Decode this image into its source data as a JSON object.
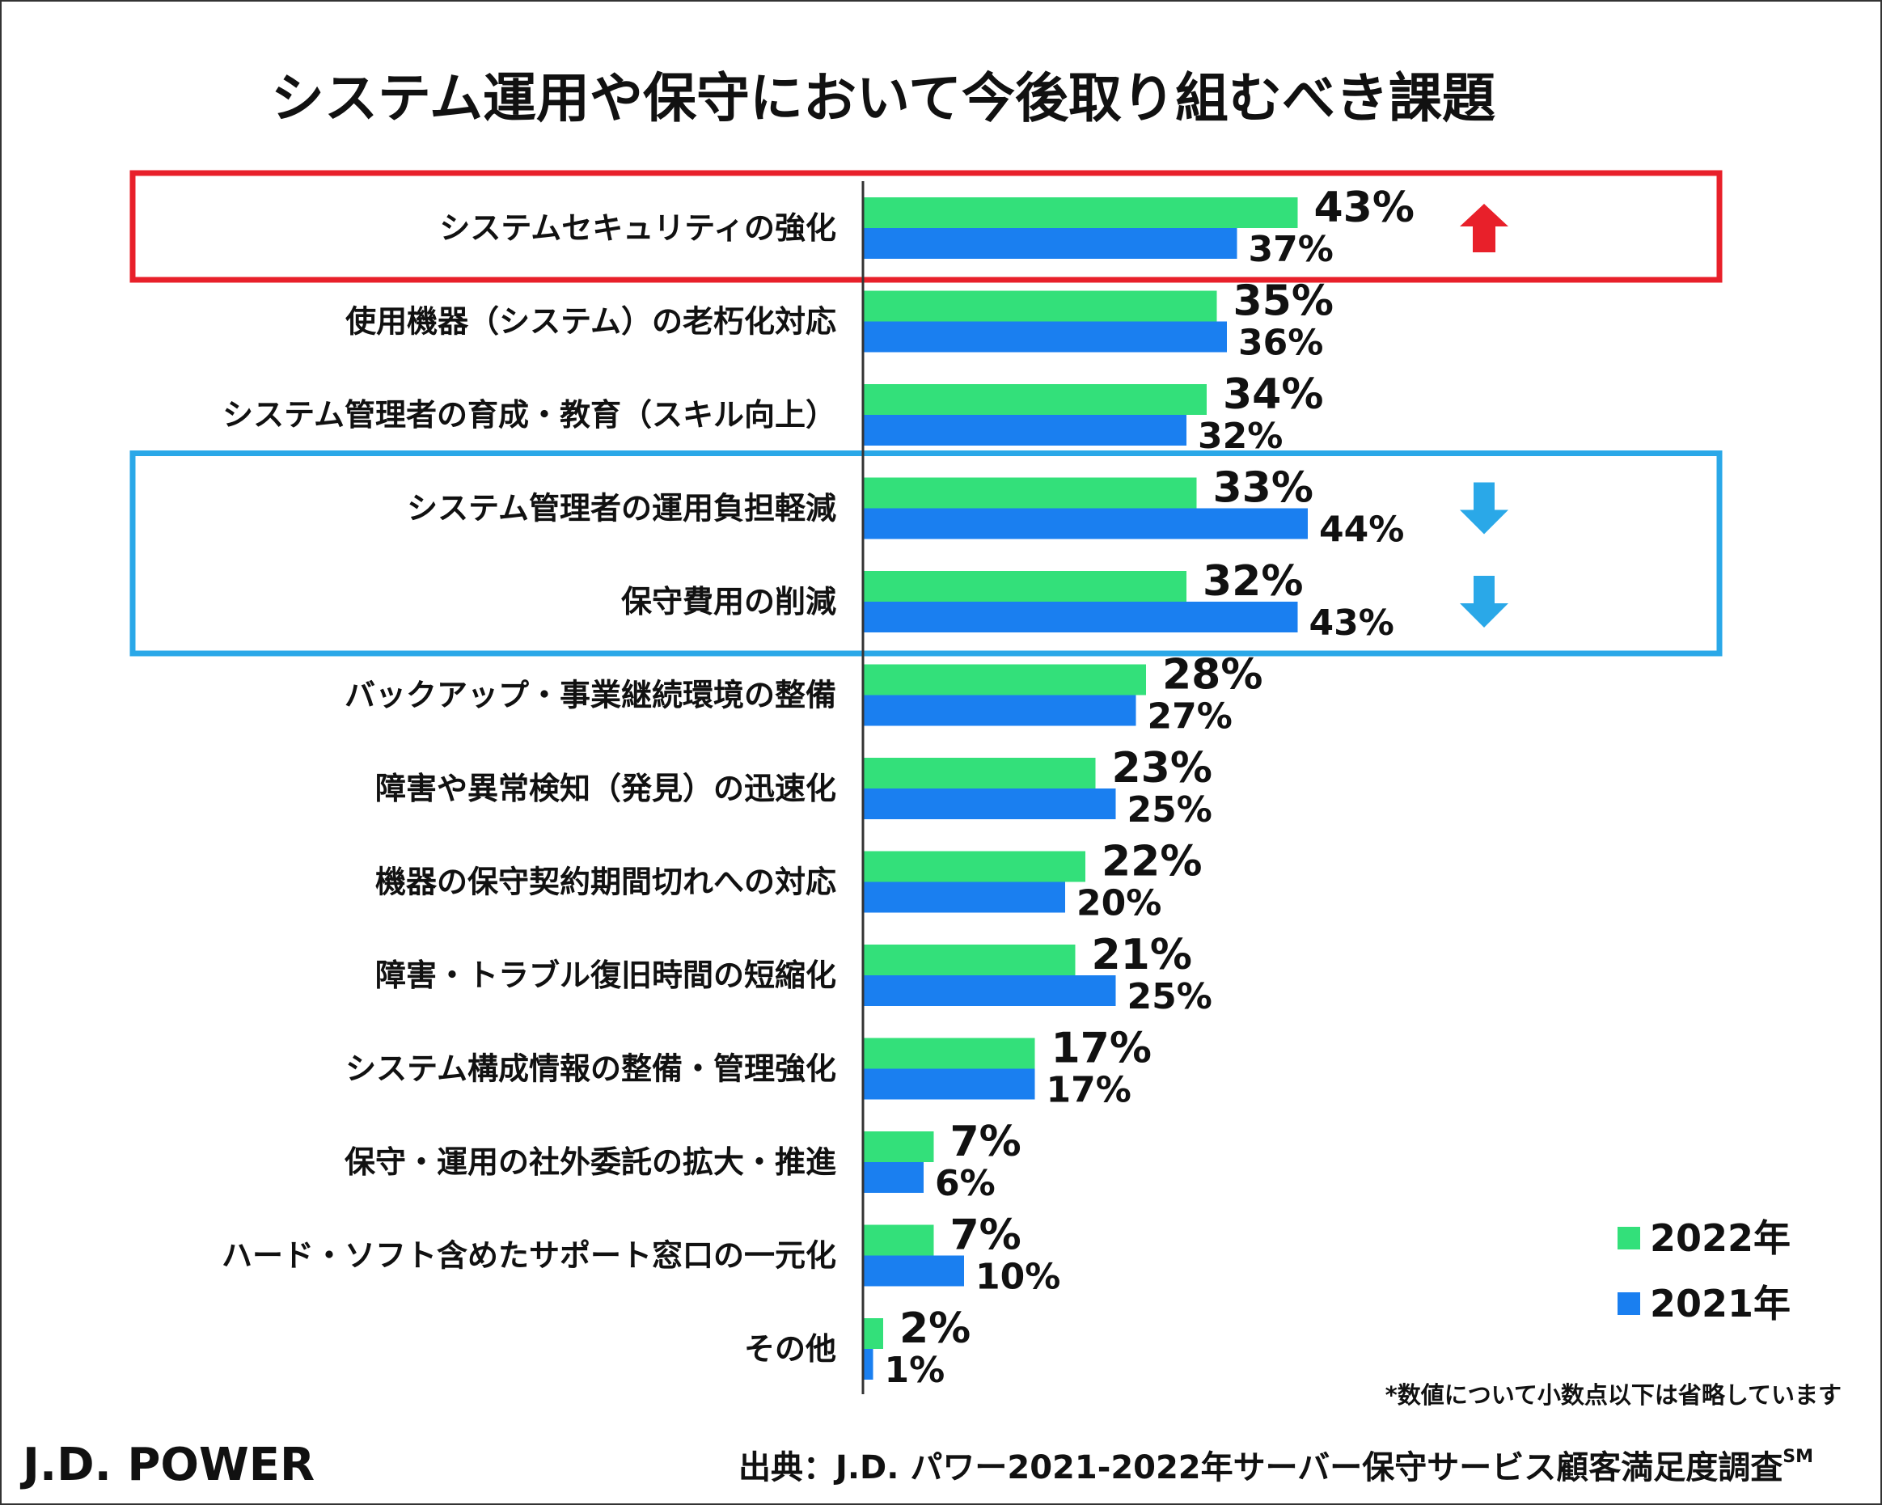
{
  "chart_data": {
    "type": "bar",
    "orientation": "horizontal",
    "title": "システム運用や保守において今後取り組むべき課題",
    "categories": [
      "システムセキュリティの強化",
      "使用機器（システム）の老朽化対応",
      "システム管理者の育成・教育（スキル向上）",
      "システム管理者の運用負担軽減",
      "保守費用の削減",
      "バックアップ・事業継続環境の整備",
      "障害や異常検知（発見）の迅速化",
      "機器の保守契約期間切れへの対応",
      "障害・トラブル復旧時間の短縮化",
      "システム構成情報の整備・管理強化",
      "保守・運用の社外委託の拡大・推進",
      "ハード・ソフト含めたサポート窓口の一元化",
      "その他"
    ],
    "series": [
      {
        "name": "2022年",
        "color": "#33e07a",
        "values": [
          43,
          35,
          34,
          33,
          32,
          28,
          23,
          22,
          21,
          17,
          7,
          7,
          2
        ],
        "labels": [
          "43%",
          "35%",
          "34%",
          "33%",
          "32%",
          "28%",
          "23%",
          "22%",
          "21%",
          "17%",
          "7%",
          "7%",
          "2%"
        ]
      },
      {
        "name": "2021年",
        "color": "#1a7ff0",
        "values": [
          37,
          36,
          32,
          44,
          43,
          27,
          25,
          20,
          25,
          17,
          6,
          10,
          1
        ],
        "labels": [
          "37%",
          "36%",
          "32%",
          "44%",
          "43%",
          "27%",
          "25%",
          "20%",
          "25%",
          "17%",
          "6%",
          "10%",
          "1%"
        ]
      }
    ],
    "xlim": [
      0,
      50
    ],
    "highlights": [
      {
        "rows": [
          0
        ],
        "color": "#e8202a",
        "arrow": "up"
      },
      {
        "rows": [
          3,
          4
        ],
        "color": "#2aa8e8",
        "arrow": "down"
      }
    ],
    "legend_position": "bottom-right",
    "footnote": "*数値について小数点以下は省略しています"
  },
  "footer": {
    "brand": "J.D. POWER",
    "brand_color": "#e8202a",
    "source": "出典：J.D. パワー2021-2022年サーバー保守サービス顧客満足度調査",
    "source_mark": "SM"
  },
  "colors": {
    "up_arrow": "#e8202a",
    "down_arrow": "#2aa8e8",
    "axis": "#333333"
  }
}
